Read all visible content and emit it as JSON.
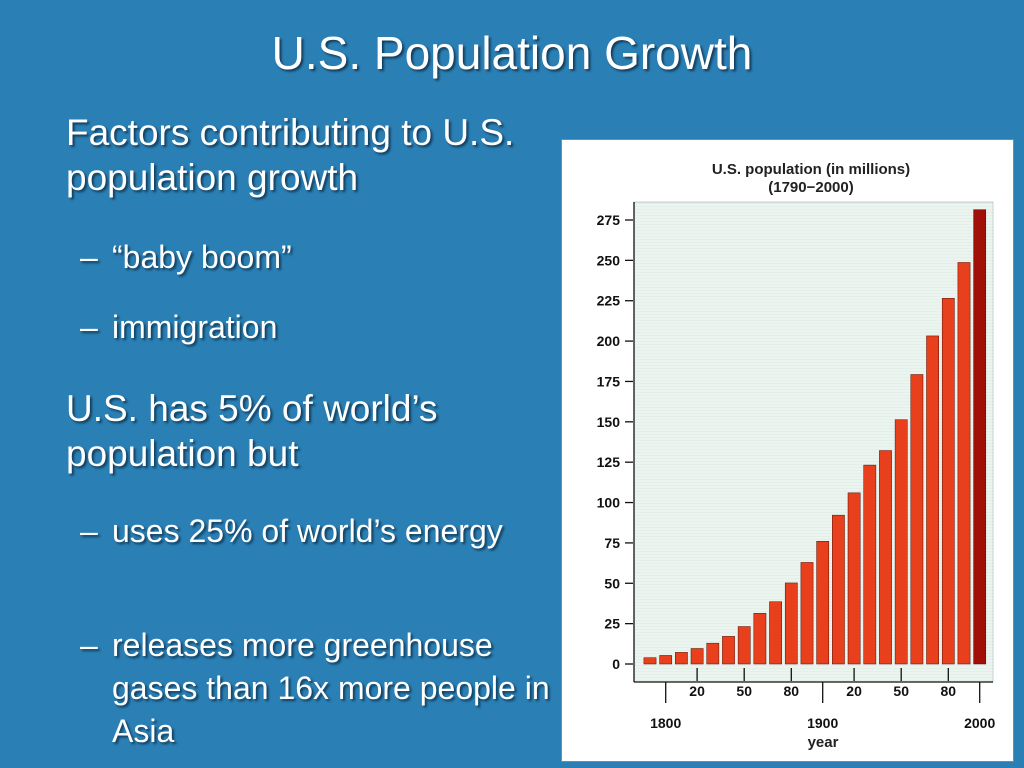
{
  "slide": {
    "title": "U.S. Population Growth",
    "factors_heading": "Factors contributing to U.S. population growth",
    "factors": [
      "“baby boom”",
      "immigration"
    ],
    "share_heading": "U.S. has 5% of world’s population but",
    "share_points": [
      "uses 25% of world’s energy",
      "releases more greenhouse gases than 16x more people in Asia"
    ],
    "bullet_dash": "–"
  },
  "colors": {
    "background": "#2a7fb4",
    "bar": "#e8401c",
    "bar_last": "#a01008",
    "plot_bg": "#e3f0ea"
  },
  "chart_data": {
    "type": "bar",
    "title": "U.S. population (in millions)",
    "subtitle": "(1790−2000)",
    "xlabel": "year",
    "ylabel": "",
    "ylim": [
      0,
      275
    ],
    "y_ticks": [
      0,
      25,
      50,
      75,
      100,
      125,
      150,
      175,
      200,
      225,
      250,
      275
    ],
    "x": [
      1790,
      1800,
      1810,
      1820,
      1830,
      1840,
      1850,
      1860,
      1870,
      1880,
      1890,
      1900,
      1910,
      1920,
      1930,
      1940,
      1950,
      1960,
      1970,
      1980,
      1990,
      2000
    ],
    "values": [
      3.9,
      5.3,
      7.2,
      9.6,
      12.9,
      17.1,
      23.2,
      31.4,
      38.6,
      50.2,
      62.9,
      76.0,
      92.2,
      106.0,
      123.2,
      132.2,
      151.3,
      179.3,
      203.2,
      226.5,
      248.7,
      281.4
    ],
    "minor_tick_labels": [
      {
        "year": 1820,
        "label": "20"
      },
      {
        "year": 1850,
        "label": "50"
      },
      {
        "year": 1880,
        "label": "80"
      },
      {
        "year": 1920,
        "label": "20"
      },
      {
        "year": 1950,
        "label": "50"
      },
      {
        "year": 1980,
        "label": "80"
      }
    ],
    "major_tick_labels": [
      {
        "year": 1800,
        "label": "1800"
      },
      {
        "year": 1900,
        "label": "1900"
      },
      {
        "year": 2000,
        "label": "2000"
      }
    ],
    "highlight_last_bar": true
  }
}
